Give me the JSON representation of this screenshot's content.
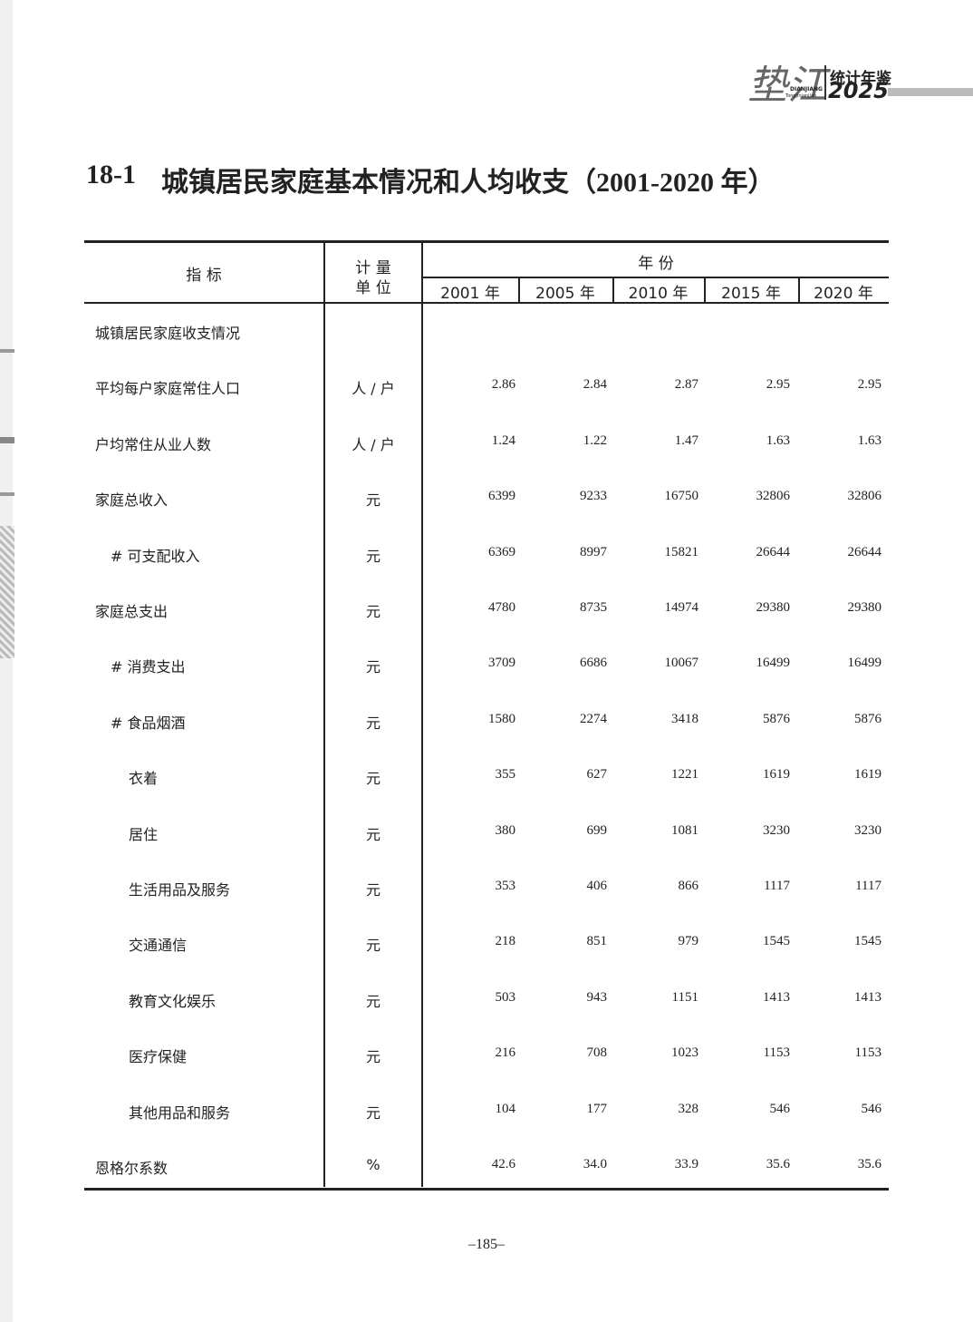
{
  "header": {
    "logo": "垫江",
    "logo_pinyin": "DIANJIANG",
    "book_title": "统计年鉴",
    "year": "2025",
    "book_pinyin": "Tongjinianjian"
  },
  "title": {
    "number": "18-1",
    "text": "城镇居民家庭基本情况和人均收支（2001-2020 年）"
  },
  "table": {
    "headers": {
      "indicator": "指 标",
      "unit_top": "计 量",
      "unit_bottom": "单 位",
      "year_group": "年 份",
      "years": [
        "2001 年",
        "2005 年",
        "2010 年",
        "2015 年",
        "2020 年"
      ]
    },
    "rows": [
      {
        "label": "城镇居民家庭收支情况"
      },
      {
        "label": "平均每户家庭常住人口",
        "unit": "人 / 户",
        "values": [
          "2.86",
          "2.84",
          "2.87",
          "2.95",
          "2.95"
        ]
      },
      {
        "label": "户均常住从业人数",
        "unit": "人 / 户",
        "values": [
          "1.24",
          "1.22",
          "1.47",
          "1.63",
          "1.63"
        ]
      },
      {
        "label": "家庭总收入",
        "unit": "元",
        "values": [
          "6399",
          "9233",
          "16750",
          "32806",
          "32806"
        ]
      },
      {
        "label": "# 可支配收入",
        "unit": "元",
        "values": [
          "6369",
          "8997",
          "15821",
          "26644",
          "26644"
        ]
      },
      {
        "label": "家庭总支出",
        "unit": "元",
        "values": [
          "4780",
          "8735",
          "14974",
          "29380",
          "29380"
        ]
      },
      {
        "label": "# 消费支出",
        "unit": "元",
        "values": [
          "3709",
          "6686",
          "10067",
          "16499",
          "16499"
        ]
      },
      {
        "label": "# 食品烟酒",
        "unit": "元",
        "values": [
          "1580",
          "2274",
          "3418",
          "5876",
          "5876"
        ]
      },
      {
        "label": "衣着",
        "unit": "元",
        "values": [
          "355",
          "627",
          "1221",
          "1619",
          "1619"
        ]
      },
      {
        "label": "居住",
        "unit": "元",
        "values": [
          "380",
          "699",
          "1081",
          "3230",
          "3230"
        ]
      },
      {
        "label": "生活用品及服务",
        "unit": "元",
        "values": [
          "353",
          "406",
          "866",
          "1117",
          "1117"
        ]
      },
      {
        "label": "交通通信",
        "unit": "元",
        "values": [
          "218",
          "851",
          "979",
          "1545",
          "1545"
        ]
      },
      {
        "label": "教育文化娱乐",
        "unit": "元",
        "values": [
          "503",
          "943",
          "1151",
          "1413",
          "1413"
        ]
      },
      {
        "label": "医疗保健",
        "unit": "元",
        "values": [
          "216",
          "708",
          "1023",
          "1153",
          "1153"
        ]
      },
      {
        "label": "其他用品和服务",
        "unit": "元",
        "values": [
          "104",
          "177",
          "328",
          "546",
          "546"
        ]
      },
      {
        "label": "恩格尔系数",
        "unit": "%",
        "values": [
          "42.6",
          "34.0",
          "33.9",
          "35.6",
          "35.6"
        ]
      }
    ]
  },
  "footer": {
    "page_number": "–185–"
  }
}
